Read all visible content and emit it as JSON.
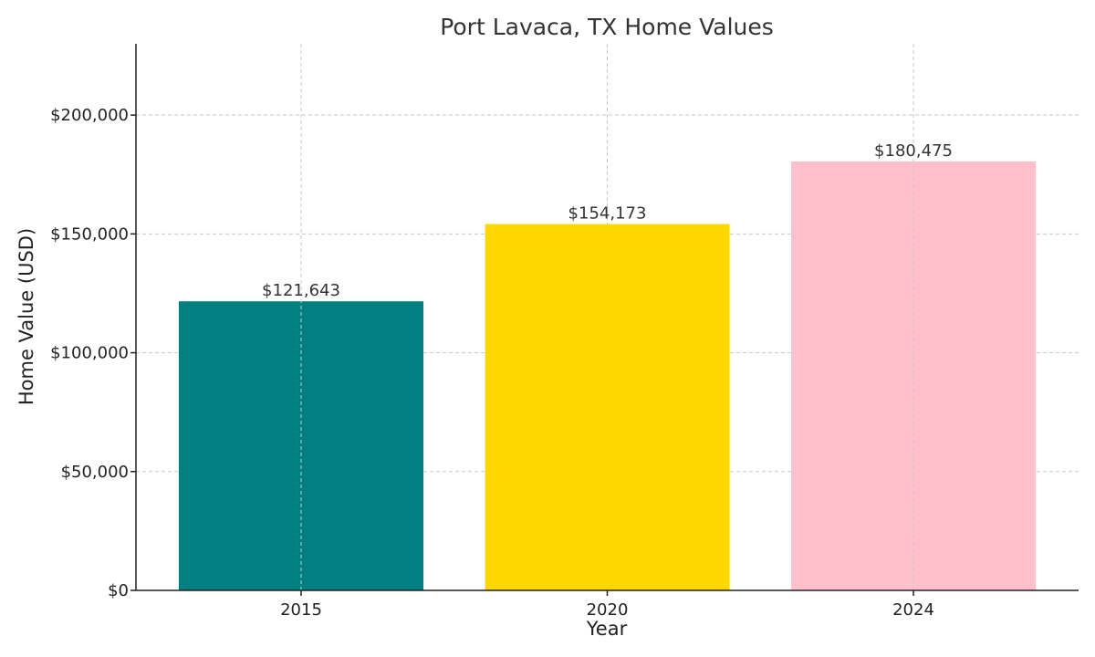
{
  "chart_data": {
    "type": "bar",
    "title": "Port Lavaca, TX Home Values",
    "xlabel": "Year",
    "ylabel": "Home Value (USD)",
    "categories": [
      "2015",
      "2020",
      "2024"
    ],
    "values": [
      121643,
      154173,
      180475
    ],
    "value_labels": [
      "$121,643",
      "$154,173",
      "$180,475"
    ],
    "colors": [
      "#008080",
      "#FFD700",
      "#FFC0CB"
    ],
    "ylim": [
      0,
      230000
    ],
    "yticks": [
      0,
      50000,
      100000,
      150000,
      200000
    ],
    "ytick_labels": [
      "$0",
      "$50,000",
      "$100,000",
      "$150,000",
      "$200,000"
    ],
    "grid": true,
    "grid_style": "dashed",
    "legend": "none"
  }
}
